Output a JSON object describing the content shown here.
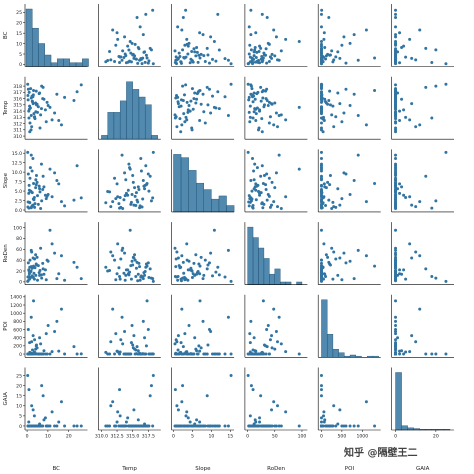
{
  "chart_data": {
    "type": "scatter",
    "kind": "pairplot",
    "variables": [
      "BC",
      "Temp",
      "Slope",
      "RoDen",
      "POI",
      "GAIA"
    ],
    "diagonal": "histogram",
    "color": "#3274a1",
    "grid": false,
    "legend": "none",
    "watermark": "知乎 @隔壁王二",
    "ranges": {
      "BC": [
        -1,
        29
      ],
      "Temp": [
        309.5,
        319.5
      ],
      "Slope": [
        -0.5,
        16
      ],
      "RoDen": [
        -5,
        110
      ],
      "POI": [
        -80,
        1450
      ],
      "GAIA": [
        -2,
        29
      ]
    },
    "ticks": {
      "BC": [
        0,
        10,
        20
      ],
      "Temp": [
        310.0,
        312.5,
        315.0,
        317.5
      ],
      "Slope": [
        0,
        5,
        10,
        15
      ],
      "RoDen": [
        0,
        50,
        100
      ],
      "POI": [
        0,
        200,
        400,
        600,
        800,
        1000,
        1200,
        1400
      ],
      "GAIA": [
        0,
        5,
        10,
        15,
        20,
        25
      ]
    },
    "y_tick_labels": {
      "BC": [
        "0",
        "5",
        "10",
        "15",
        "20",
        "25"
      ],
      "Temp": [
        "310",
        "311",
        "312",
        "313",
        "314",
        "315",
        "316",
        "317",
        "318"
      ],
      "Slope": [
        "0.0",
        "2.5",
        "5.0",
        "7.5",
        "10.0",
        "12.5",
        "15.0"
      ],
      "RoDen": [
        "0",
        "20",
        "40",
        "60",
        "80",
        "100"
      ],
      "POI": [
        "0",
        "200",
        "400",
        "600",
        "800",
        "1000",
        "1200",
        "1400"
      ],
      "GAIA": [
        "0",
        "5",
        "10",
        "15",
        "20",
        "25"
      ]
    },
    "x_tick_labels": {
      "BC": [
        "0",
        "10",
        "20"
      ],
      "Temp": [
        "310.0",
        "312.5",
        "315.0",
        "317.5"
      ],
      "Slope": [
        "0",
        "5",
        "10",
        "15"
      ],
      "RoDen": [
        "0",
        "50",
        "100"
      ],
      "POI": [
        "0",
        "500",
        "1000"
      ],
      "GAIA": [
        "0",
        "20"
      ]
    },
    "histograms": {
      "BC": {
        "bins": [
          -0.5,
          2.5,
          5.5,
          8.5,
          11.5,
          14.5,
          17.5,
          20.5,
          23.5,
          26.5,
          29.5
        ],
        "counts": [
          15,
          10,
          6,
          3,
          1,
          2,
          2,
          1,
          1,
          2
        ]
      },
      "Temp": {
        "bins": [
          310,
          311,
          312,
          313,
          314,
          315,
          316,
          317,
          318,
          319
        ],
        "counts": [
          1,
          7,
          7,
          10,
          15,
          13,
          11,
          9,
          1
        ]
      },
      "Slope": {
        "bins": [
          0,
          2,
          4,
          6,
          8,
          10,
          12,
          14,
          16
        ],
        "counts": [
          18,
          17,
          13,
          9,
          7,
          4,
          5,
          2
        ]
      },
      "RoDen": {
        "bins": [
          0,
          10,
          20,
          30,
          40,
          50,
          60,
          70,
          80,
          90,
          100,
          110
        ],
        "counts": [
          22,
          18,
          14,
          10,
          4,
          6,
          1,
          1,
          0,
          1,
          0
        ]
      },
      "POI": {
        "bins": [
          0,
          140,
          280,
          420,
          560,
          700,
          840,
          980,
          1120,
          1260,
          1400
        ],
        "counts": [
          50,
          20,
          7,
          4,
          1,
          2,
          1,
          0,
          1,
          1
        ]
      },
      "GAIA": {
        "bins": [
          0,
          3,
          6,
          9,
          12,
          15,
          18,
          21,
          24,
          27
        ],
        "counts": [
          80,
          6,
          3,
          2,
          1,
          1,
          1,
          1,
          1
        ]
      }
    },
    "points": {
      "BC": [
        0.5,
        1.1,
        2.0,
        3.5,
        1.4,
        2.6,
        0.8,
        4.4,
        3.0,
        2.2,
        1.6,
        5.0,
        6.0,
        3.8,
        4.8,
        7.0,
        0.6,
        1.9,
        6.5,
        8.1,
        2.8,
        5.4,
        9.2,
        7.7,
        4.1,
        3.3,
        10.1,
        0.3,
        2.4,
        1.3,
        14.3,
        12.0,
        1.0,
        3.6,
        6.9,
        2.5,
        16.5,
        1.7,
        4.5,
        18.0,
        8.8,
        2.0,
        5.8,
        22.5,
        0.9,
        3.1,
        11.0,
        26.0,
        6.2,
        2.9,
        4.2,
        7.5,
        1.2,
        24.0,
        15.2,
        9.6,
        0.4,
        13.2
      ],
      "Temp": [
        315.8,
        314.3,
        316.1,
        313.0,
        312.1,
        315.5,
        314.0,
        317.2,
        316.6,
        311.5,
        314.5,
        313.8,
        316.9,
        312.8,
        315.1,
        318.0,
        317.5,
        311.0,
        313.4,
        315.9,
        316.3,
        314.7,
        312.3,
        317.8,
        315.3,
        313.6,
        314.9,
        318.3,
        316.4,
        310.7,
        316.7,
        312.6,
        317.0,
        313.1,
        314.4,
        315.6,
        311.8,
        317.6,
        315.0,
        316.2,
        314.2,
        313.3,
        316.8,
        315.7,
        312.9,
        317.3,
        314.6,
        318.2,
        311.3,
        315.2,
        313.9,
        316.0,
        314.8,
        317.1,
        312.5,
        315.4,
        316.5,
        313.7
      ],
      "Slope": [
        2.1,
        5.2,
        0.6,
        3.3,
        8.4,
        1.2,
        4.4,
        6.7,
        2.9,
        0.9,
        11.2,
        3.8,
        5.6,
        1.7,
        7.3,
        2.4,
        9.5,
        4.9,
        0.4,
        6.1,
        13.6,
        1.5,
        3.0,
        8.9,
        5.9,
        2.7,
        4.1,
        15.2,
        10.3,
        1.9,
        7.8,
        3.5,
        6.5,
        0.7,
        12.1,
        4.6,
        2.2,
        5.0,
        9.1,
        1.1,
        3.9,
        14.5,
        6.3,
        2.6,
        0.5,
        7.0,
        10.8,
        3.2,
        4.8,
        1.3,
        8.0,
        5.4,
        2.0,
        11.7,
        6.9,
        3.6,
        0.8,
        9.8
      ],
      "RoDen": [
        2,
        15,
        28,
        5,
        40,
        10,
        22,
        33,
        8,
        55,
        18,
        3,
        12,
        26,
        45,
        7,
        35,
        20,
        62,
        14,
        9,
        30,
        4,
        24,
        50,
        16,
        38,
        1,
        11,
        27,
        6,
        70,
        19,
        42,
        13,
        25,
        48,
        8,
        31,
        3,
        22,
        58,
        17,
        36,
        10,
        29,
        95,
        6,
        21,
        44,
        12,
        34,
        5,
        27,
        15,
        40,
        9,
        53
      ],
      "POI": [
        0,
        0,
        20,
        50,
        0,
        100,
        0,
        200,
        10,
        300,
        0,
        0,
        400,
        30,
        150,
        0,
        600,
        0,
        250,
        80,
        0,
        0,
        500,
        0,
        120,
        0,
        700,
        0,
        0,
        40,
        800,
        60,
        0,
        350,
        0,
        10,
        1100,
        0,
        220,
        0,
        0,
        900,
        0,
        180,
        0,
        1300,
        0,
        5,
        0,
        450,
        0,
        0,
        280,
        0,
        70,
        0,
        0,
        550
      ],
      "GAIA": [
        0,
        0,
        0,
        5,
        0,
        0,
        2,
        0,
        0,
        10,
        0,
        0,
        1,
        0,
        0,
        20,
        0,
        0,
        0,
        3,
        0,
        0,
        0,
        15,
        0,
        0,
        0,
        25,
        0,
        0,
        0,
        7,
        0,
        0,
        0,
        0,
        12,
        0,
        0,
        0,
        4,
        0,
        0,
        0,
        18,
        0,
        0,
        0,
        0,
        8,
        0,
        0,
        0,
        0,
        2,
        0,
        0,
        0
      ]
    }
  },
  "watermark_text": "知乎 @隔壁王二"
}
